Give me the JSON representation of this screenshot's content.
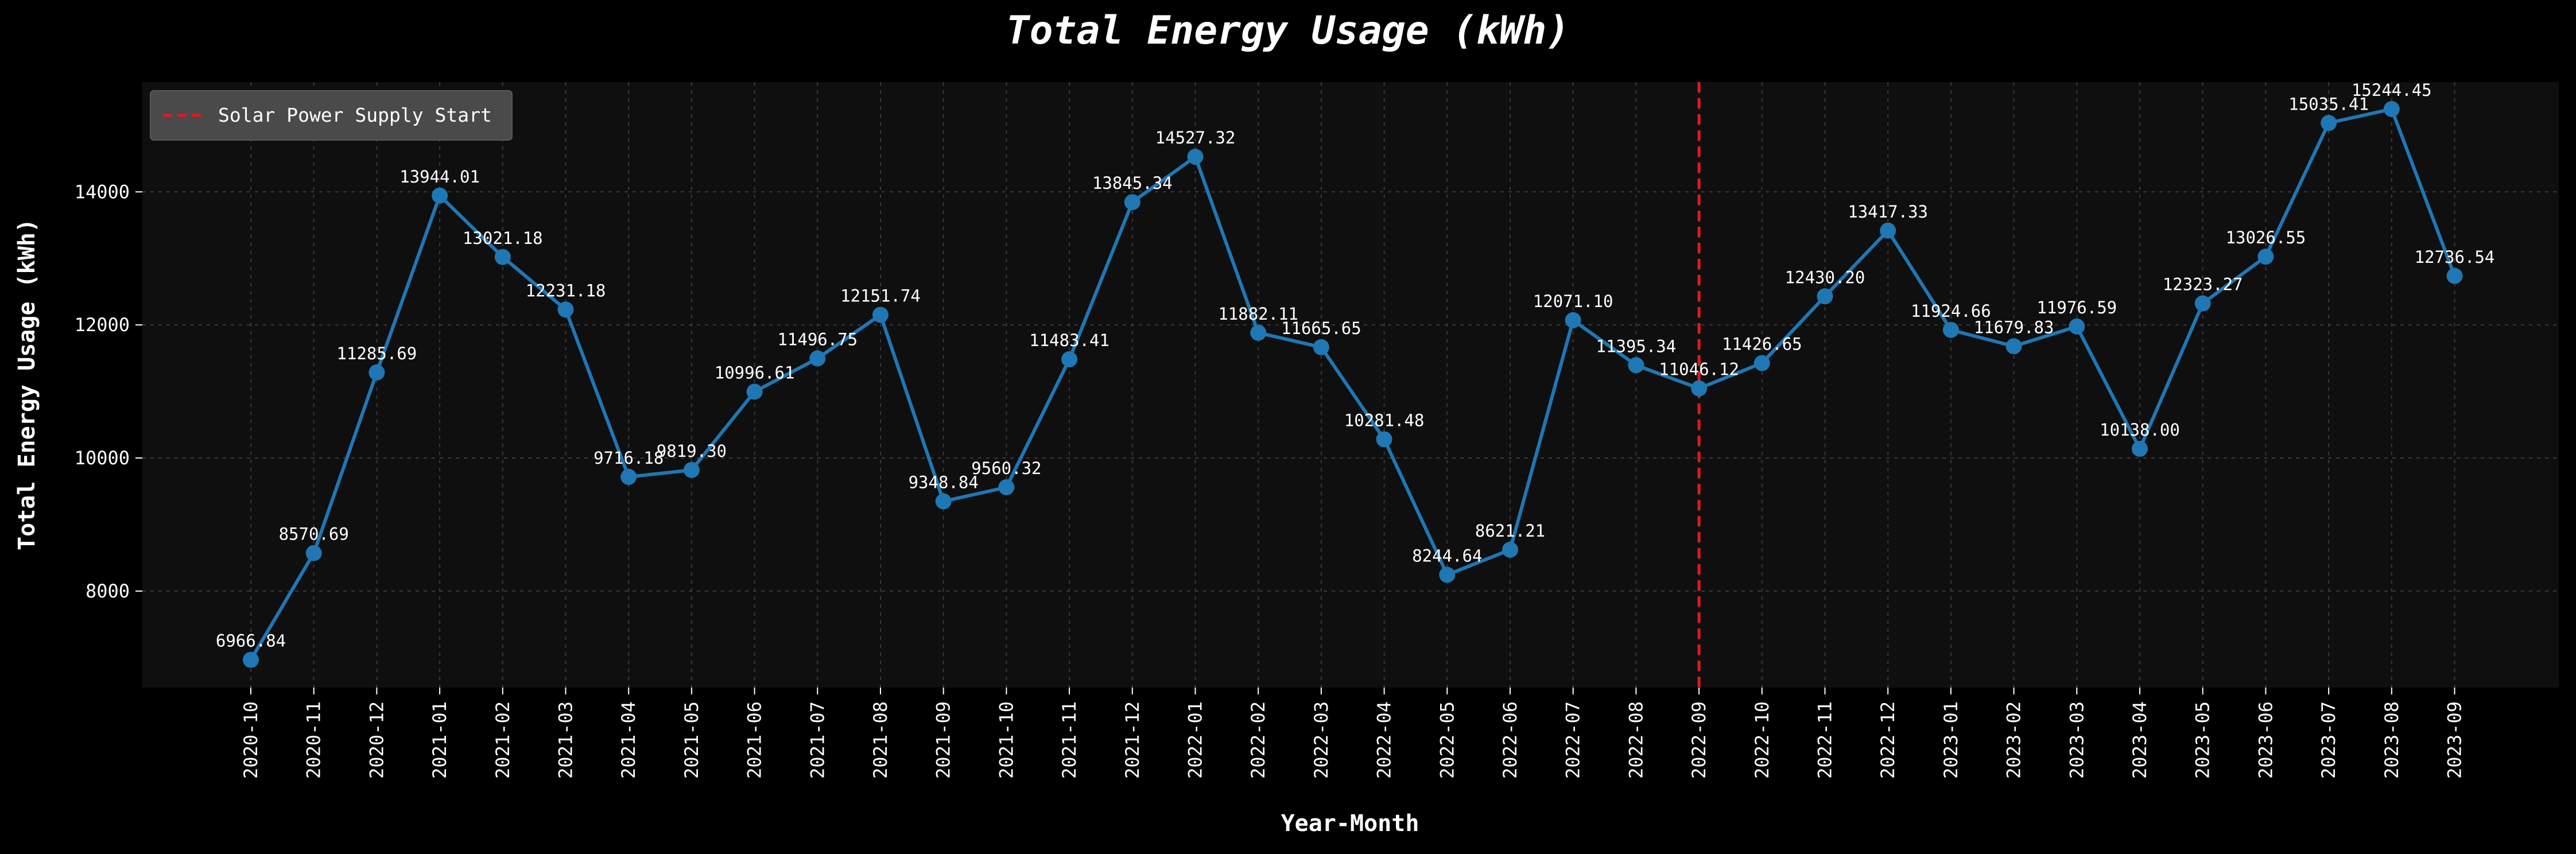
{
  "chart_data": {
    "type": "line",
    "title": "Total Energy Usage (kWh)",
    "xlabel": "Year-Month",
    "ylabel": "Total Energy Usage (kWh)",
    "categories": [
      "2020-10",
      "2020-11",
      "2020-12",
      "2021-01",
      "2021-02",
      "2021-03",
      "2021-04",
      "2021-05",
      "2021-06",
      "2021-07",
      "2021-08",
      "2021-09",
      "2021-10",
      "2021-11",
      "2021-12",
      "2022-01",
      "2022-02",
      "2022-03",
      "2022-04",
      "2022-05",
      "2022-06",
      "2022-07",
      "2022-08",
      "2022-09",
      "2022-10",
      "2022-11",
      "2022-12",
      "2023-01",
      "2023-02",
      "2023-03",
      "2023-04",
      "2023-05",
      "2023-06",
      "2023-07",
      "2023-08",
      "2023-09"
    ],
    "values": [
      6966.84,
      8570.69,
      11285.69,
      13944.01,
      13021.18,
      12231.18,
      9716.18,
      9819.3,
      10996.61,
      11496.75,
      12151.74,
      9348.84,
      9560.32,
      11483.41,
      13845.34,
      14527.32,
      11882.11,
      11665.65,
      10281.48,
      8244.64,
      8621.21,
      12071.1,
      11395.34,
      11046.12,
      11426.65,
      12430.2,
      13417.33,
      11924.66,
      11679.83,
      11976.59,
      10138.0,
      12323.27,
      13026.55,
      15035.41,
      15244.45,
      12736.54
    ],
    "value_labels": [
      "6966.84",
      "8570.69",
      "11285.69",
      "13944.01",
      "13021.18",
      "12231.18",
      "9716.18",
      "9819.30",
      "10996.61",
      "11496.75",
      "12151.74",
      "9348.84",
      "9560.32",
      "11483.41",
      "13845.34",
      "14527.32",
      "11882.11",
      "11665.65",
      "10281.48",
      "8244.64",
      "8621.21",
      "12071.10",
      "11395.34",
      "11046.12",
      "11426.65",
      "12430.20",
      "13417.33",
      "11924.66",
      "11679.83",
      "11976.59",
      "10138.00",
      "12323.27",
      "13026.55",
      "15035.41",
      "15244.45",
      "12736.54"
    ],
    "ylim": [
      6550,
      15650
    ],
    "yticks": [
      "8000",
      "10000",
      "12000",
      "14000"
    ],
    "grid": true,
    "line_color": "#1f77b4",
    "vline": {
      "x": "2022-09",
      "label": "Solar Power Supply Start",
      "color": "#e31a1c"
    },
    "legend_position": "top-left"
  }
}
